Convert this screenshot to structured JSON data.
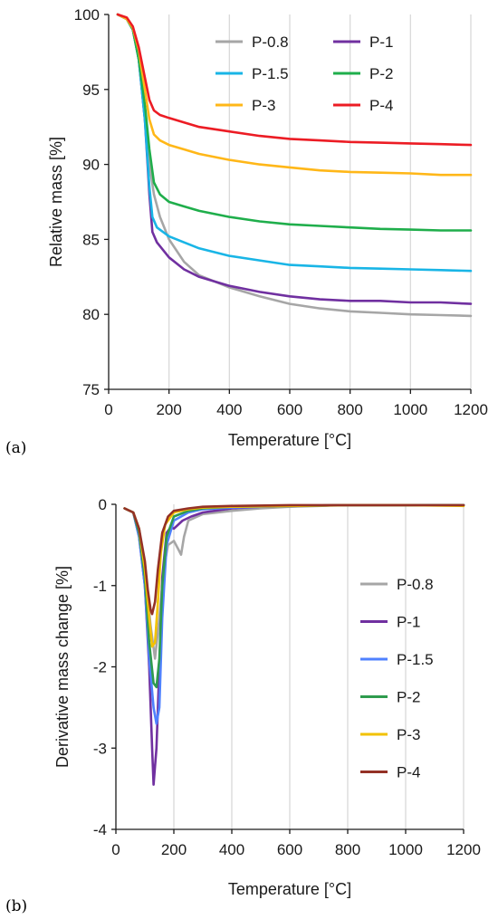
{
  "chart_data": [
    {
      "type": "line",
      "panel_label": "(a)",
      "xlabel": "Temperature [°C]",
      "ylabel": "Relative mass [%]",
      "xlim": [
        0,
        1200
      ],
      "ylim": [
        75,
        100
      ],
      "xticks": [
        0,
        200,
        400,
        600,
        800,
        1000,
        1200
      ],
      "yticks": [
        75,
        80,
        85,
        90,
        95,
        100
      ],
      "grid": "vertical",
      "legend": "top-right, two columns",
      "series": [
        {
          "name": "P-0.8",
          "color": "#a6a6a6",
          "x": [
            30,
            60,
            80,
            100,
            120,
            135,
            150,
            170,
            200,
            250,
            300,
            400,
            500,
            600,
            700,
            800,
            900,
            1000,
            1100,
            1200
          ],
          "y": [
            100,
            99.7,
            99.0,
            97.0,
            93.0,
            90.0,
            88.0,
            86.5,
            85.0,
            83.5,
            82.6,
            81.8,
            81.2,
            80.7,
            80.4,
            80.2,
            80.1,
            80.0,
            79.95,
            79.9
          ]
        },
        {
          "name": "P-1",
          "color": "#7030a0",
          "x": [
            30,
            60,
            80,
            100,
            120,
            135,
            145,
            160,
            200,
            250,
            300,
            400,
            500,
            600,
            700,
            800,
            900,
            1000,
            1100,
            1200
          ],
          "y": [
            100,
            99.7,
            99.0,
            97.0,
            93.0,
            88.0,
            85.5,
            84.8,
            83.8,
            83.0,
            82.5,
            81.9,
            81.5,
            81.2,
            81.0,
            80.9,
            80.9,
            80.8,
            80.8,
            80.7
          ]
        },
        {
          "name": "P-1.5",
          "color": "#19b5e6",
          "x": [
            30,
            60,
            80,
            100,
            120,
            135,
            145,
            160,
            200,
            250,
            300,
            400,
            500,
            600,
            700,
            800,
            900,
            1000,
            1100,
            1200
          ],
          "y": [
            100,
            99.7,
            99.0,
            97.0,
            93.0,
            88.5,
            86.5,
            85.8,
            85.2,
            84.8,
            84.4,
            83.9,
            83.6,
            83.3,
            83.2,
            83.1,
            83.05,
            83.0,
            82.95,
            82.9
          ]
        },
        {
          "name": "P-2",
          "color": "#1fae4b",
          "x": [
            30,
            60,
            80,
            100,
            120,
            135,
            150,
            170,
            200,
            250,
            300,
            400,
            500,
            600,
            700,
            800,
            900,
            1000,
            1100,
            1200
          ],
          "y": [
            100,
            99.7,
            99.0,
            97.0,
            94.0,
            91.0,
            88.8,
            88.0,
            87.5,
            87.2,
            86.9,
            86.5,
            86.2,
            86.0,
            85.9,
            85.8,
            85.7,
            85.65,
            85.6,
            85.6
          ]
        },
        {
          "name": "P-3",
          "color": "#ffb718",
          "x": [
            30,
            60,
            80,
            100,
            120,
            135,
            150,
            170,
            200,
            250,
            300,
            400,
            500,
            600,
            700,
            800,
            900,
            1000,
            1100,
            1200
          ],
          "y": [
            100,
            99.7,
            99.1,
            97.6,
            95.0,
            93.0,
            92.0,
            91.6,
            91.3,
            91.0,
            90.7,
            90.3,
            90.0,
            89.8,
            89.6,
            89.5,
            89.45,
            89.4,
            89.3,
            89.3
          ]
        },
        {
          "name": "P-4",
          "color": "#ec1c24",
          "x": [
            30,
            60,
            80,
            100,
            120,
            135,
            150,
            170,
            200,
            250,
            300,
            400,
            500,
            600,
            700,
            800,
            900,
            1000,
            1100,
            1200
          ],
          "y": [
            100,
            99.8,
            99.2,
            97.8,
            95.8,
            94.3,
            93.6,
            93.3,
            93.1,
            92.8,
            92.5,
            92.2,
            91.9,
            91.7,
            91.6,
            91.5,
            91.45,
            91.4,
            91.35,
            91.3
          ]
        }
      ]
    },
    {
      "type": "line",
      "panel_label": "(b)",
      "xlabel": "Temperature [°C]",
      "ylabel": "Derivative mass change [%]",
      "xlim": [
        0,
        1200
      ],
      "ylim": [
        -4,
        0
      ],
      "xticks": [
        0,
        200,
        400,
        600,
        800,
        1000,
        1200
      ],
      "yticks": [
        0,
        -1,
        -2,
        -3,
        -4
      ],
      "grid": "vertical",
      "legend": "right, single column",
      "series": [
        {
          "name": "P-0.8",
          "color": "#a6a6a6",
          "x": [
            30,
            60,
            80,
            100,
            120,
            135,
            150,
            165,
            180,
            200,
            215,
            225,
            235,
            250,
            300,
            400,
            500,
            600,
            800,
            1000,
            1200
          ],
          "y": [
            -0.05,
            -0.1,
            -0.3,
            -0.8,
            -1.5,
            -1.9,
            -1.4,
            -0.8,
            -0.5,
            -0.45,
            -0.55,
            -0.62,
            -0.4,
            -0.2,
            -0.12,
            -0.08,
            -0.05,
            -0.03,
            -0.01,
            -0.01,
            -0.01
          ]
        },
        {
          "name": "P-1",
          "color": "#7030a0",
          "x": [
            30,
            60,
            80,
            100,
            115,
            125,
            130,
            140,
            150,
            160,
            175,
            190,
            200,
            230,
            260,
            300,
            400,
            500,
            600,
            800,
            1000,
            1200
          ],
          "y": [
            -0.05,
            -0.1,
            -0.4,
            -1.0,
            -2.0,
            -3.0,
            -3.45,
            -3.0,
            -2.0,
            -0.9,
            -0.35,
            -0.28,
            -0.3,
            -0.2,
            -0.15,
            -0.1,
            -0.05,
            -0.03,
            -0.02,
            -0.01,
            -0.01,
            -0.01
          ]
        },
        {
          "name": "P-1.5",
          "color": "#4f81ff",
          "x": [
            30,
            60,
            80,
            100,
            115,
            130,
            140,
            150,
            160,
            175,
            200,
            250,
            300,
            400,
            600,
            800,
            1000,
            1200
          ],
          "y": [
            -0.05,
            -0.1,
            -0.4,
            -1.0,
            -1.9,
            -2.5,
            -2.7,
            -2.5,
            -1.4,
            -0.5,
            -0.2,
            -0.1,
            -0.06,
            -0.04,
            -0.02,
            -0.01,
            -0.01,
            -0.01
          ]
        },
        {
          "name": "P-2",
          "color": "#2e9b4e",
          "x": [
            30,
            60,
            80,
            100,
            115,
            130,
            140,
            150,
            160,
            175,
            200,
            250,
            300,
            400,
            600,
            800,
            1000,
            1200
          ],
          "y": [
            -0.05,
            -0.1,
            -0.35,
            -0.9,
            -1.7,
            -2.2,
            -2.25,
            -1.9,
            -1.0,
            -0.4,
            -0.15,
            -0.08,
            -0.05,
            -0.03,
            -0.02,
            -0.01,
            -0.01,
            -0.01
          ]
        },
        {
          "name": "P-3",
          "color": "#f2c200",
          "x": [
            30,
            60,
            80,
            100,
            115,
            125,
            135,
            145,
            155,
            170,
            200,
            250,
            300,
            400,
            600,
            800,
            1000,
            1200
          ],
          "y": [
            -0.05,
            -0.1,
            -0.3,
            -0.8,
            -1.4,
            -1.75,
            -1.7,
            -1.2,
            -0.6,
            -0.25,
            -0.1,
            -0.06,
            -0.04,
            -0.03,
            -0.02,
            -0.01,
            -0.01,
            -0.02
          ]
        },
        {
          "name": "P-4",
          "color": "#943126",
          "x": [
            30,
            60,
            80,
            100,
            110,
            120,
            125,
            135,
            145,
            160,
            180,
            200,
            250,
            300,
            400,
            600,
            800,
            1000,
            1200
          ],
          "y": [
            -0.05,
            -0.1,
            -0.3,
            -0.7,
            -1.05,
            -1.3,
            -1.35,
            -1.2,
            -0.8,
            -0.35,
            -0.15,
            -0.08,
            -0.05,
            -0.03,
            -0.02,
            -0.01,
            -0.01,
            -0.01,
            -0.01
          ]
        }
      ]
    }
  ]
}
